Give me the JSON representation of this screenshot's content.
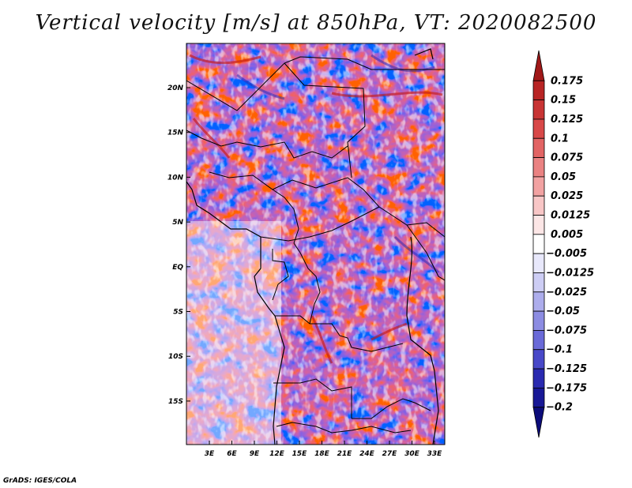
{
  "title": "Vertical velocity [m/s] at 850hPa, VT: 2020082500",
  "credit": "GrADS: IGES/COLA",
  "lat_ticks": [
    "20N",
    "15N",
    "10N",
    "5N",
    "EQ",
    "5S",
    "10S",
    "15S"
  ],
  "lon_ticks": [
    "3E",
    "6E",
    "9E",
    "12E",
    "15E",
    "18E",
    "21E",
    "24E",
    "27E",
    "30E",
    "33E"
  ],
  "colorbar": {
    "labels": [
      "0.175",
      "0.15",
      "0.125",
      "0.1",
      "0.075",
      "0.05",
      "0.025",
      "0.0125",
      "0.005",
      "-0.005",
      "-0.0125",
      "-0.025",
      "-0.05",
      "-0.075",
      "-0.1",
      "-0.125",
      "-0.175",
      "-0.2"
    ],
    "colors": [
      "#a01818",
      "#b82424",
      "#c83434",
      "#d84848",
      "#e26464",
      "#ea8282",
      "#f2a2a2",
      "#f8c6c6",
      "#fce6e6",
      "#ffffff",
      "#e8e8fb",
      "#cdcdf4",
      "#adadec",
      "#8c8ce2",
      "#6a6ad8",
      "#4848c8",
      "#2a2ab0",
      "#181896",
      "#0c0c7a"
    ]
  }
}
